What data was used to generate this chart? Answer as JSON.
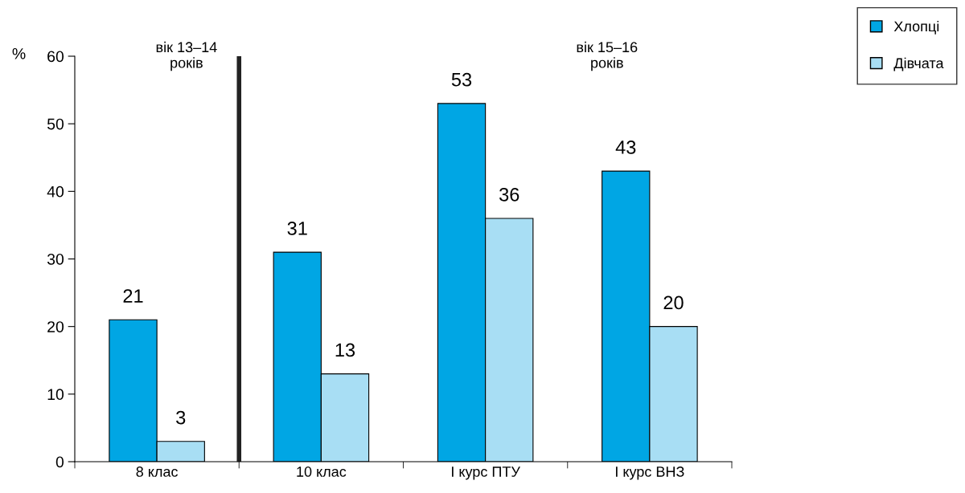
{
  "chart_data": {
    "type": "bar",
    "ylabel": "%",
    "categories": [
      "8 клас",
      "10 клас",
      "І курс ПТУ",
      "І курс ВНЗ"
    ],
    "series": [
      {
        "name": "Хлопці",
        "color": "#00a6e4",
        "values": [
          21,
          31,
          53,
          43
        ]
      },
      {
        "name": "Дівчата",
        "color": "#a8def4",
        "values": [
          3,
          13,
          36,
          20
        ]
      }
    ],
    "ylim": [
      0,
      60
    ],
    "yticks": [
      0,
      10,
      20,
      30,
      40,
      50,
      60
    ],
    "data_labels": true,
    "grid": false,
    "legend": "top right",
    "annotations": [
      "вік 13–14\nроків",
      "вік 15–16\nроків"
    ]
  }
}
